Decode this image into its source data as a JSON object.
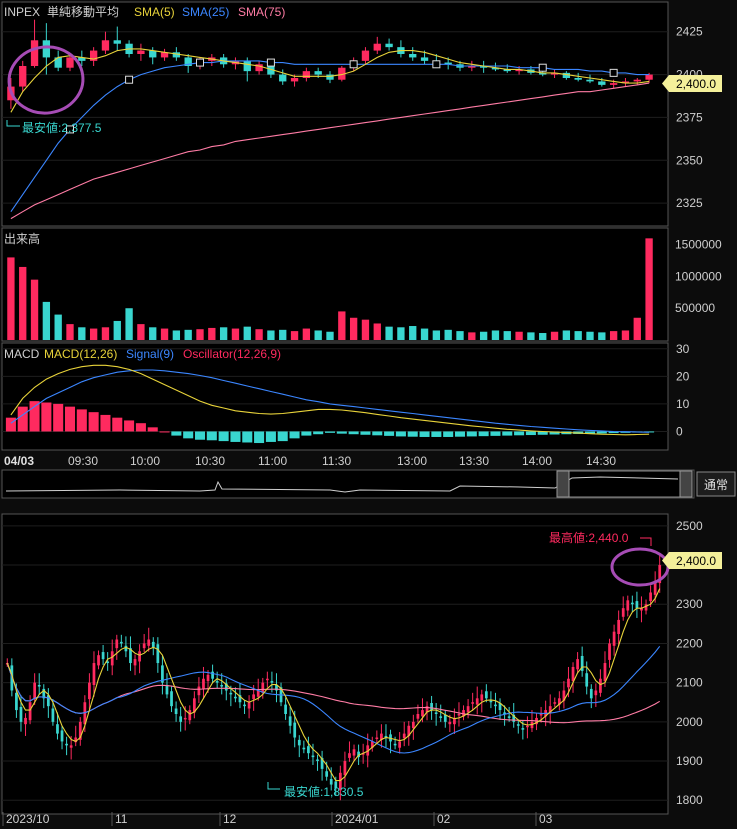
{
  "colors": {
    "up": "#ff2a5f",
    "down": "#39d6cf",
    "sma5": "#e8d33a",
    "sma25": "#3b86ff",
    "sma75": "#ff7ca5",
    "signal": "#3b86ff",
    "macd": "#e8d33a",
    "osc": "#ff2a5f",
    "price_badge": "#f4f09a",
    "annotation_circle": "#a64cb5"
  },
  "intraday": {
    "legend": {
      "symbol": "INPEX",
      "title": "単純移動平均",
      "sma5": "SMA(5)",
      "sma25": "SMA(25)",
      "sma75": "SMA(75)"
    },
    "price_badge": "2,400.0",
    "low_label": "最安値:2,377.5",
    "volume_title": "出来高",
    "macd_legend": {
      "macd": "MACD",
      "macd_params": "MACD(12,26)",
      "signal": "Signal(9)",
      "osc": "Oscillator(12,26,9)"
    },
    "date_label": "04/03",
    "time_labels": [
      "09:30",
      "10:00",
      "10:30",
      "11:00",
      "11:30",
      "13:00",
      "13:30",
      "14:00",
      "14:30"
    ],
    "mode_button": "通常"
  },
  "daily": {
    "price_badge": "2,400.0",
    "high_label": "最高値:2,440.0",
    "low_label": "最安値:1,830.5",
    "x_labels": [
      "2023/10",
      "11",
      "12",
      "2024/01",
      "02",
      "03"
    ]
  },
  "chart_data": [
    {
      "type": "candlestick",
      "name": "intraday-price",
      "yticks": [
        2325,
        2350,
        2375,
        2400,
        2425
      ],
      "ylim": [
        2314,
        2440
      ],
      "candles": [
        [
          2385,
          2398,
          2380,
          2393
        ],
        [
          2393,
          2408,
          2390,
          2405
        ],
        [
          2405,
          2432,
          2404,
          2420
        ],
        [
          2420,
          2430,
          2400,
          2410
        ],
        [
          2410,
          2414,
          2402,
          2404
        ],
        [
          2404,
          2412,
          2402,
          2410
        ],
        [
          2410,
          2414,
          2405,
          2408
        ],
        [
          2408,
          2416,
          2405,
          2414
        ],
        [
          2414,
          2425,
          2412,
          2420
        ],
        [
          2420,
          2428,
          2414,
          2418
        ],
        [
          2418,
          2420,
          2410,
          2412
        ],
        [
          2412,
          2418,
          2408,
          2414
        ],
        [
          2414,
          2416,
          2406,
          2410
        ],
        [
          2410,
          2415,
          2408,
          2413
        ],
        [
          2413,
          2416,
          2408,
          2410
        ],
        [
          2410,
          2412,
          2401,
          2405
        ],
        [
          2405,
          2410,
          2403,
          2408
        ],
        [
          2408,
          2412,
          2405,
          2410
        ],
        [
          2410,
          2412,
          2404,
          2406
        ],
        [
          2406,
          2410,
          2403,
          2408
        ],
        [
          2408,
          2410,
          2396,
          2402
        ],
        [
          2402,
          2408,
          2400,
          2406
        ],
        [
          2406,
          2408,
          2398,
          2400
        ],
        [
          2400,
          2403,
          2394,
          2396
        ],
        [
          2396,
          2400,
          2393,
          2398
        ],
        [
          2398,
          2404,
          2396,
          2402
        ],
        [
          2402,
          2404,
          2398,
          2400
        ],
        [
          2400,
          2402,
          2395,
          2397
        ],
        [
          2397,
          2405,
          2396,
          2404
        ],
        [
          2404,
          2410,
          2402,
          2408
        ],
        [
          2408,
          2416,
          2406,
          2414
        ],
        [
          2414,
          2422,
          2412,
          2418
        ],
        [
          2418,
          2421,
          2414,
          2416
        ],
        [
          2416,
          2420,
          2410,
          2412
        ],
        [
          2412,
          2416,
          2408,
          2410
        ],
        [
          2410,
          2414,
          2406,
          2408
        ],
        [
          2408,
          2412,
          2404,
          2407
        ],
        [
          2407,
          2410,
          2403,
          2406
        ],
        [
          2406,
          2408,
          2402,
          2404
        ],
        [
          2404,
          2408,
          2402,
          2405
        ],
        [
          2405,
          2408,
          2401,
          2404
        ],
        [
          2404,
          2407,
          2402,
          2403
        ],
        [
          2403,
          2406,
          2401,
          2402
        ],
        [
          2402,
          2405,
          2400,
          2403
        ],
        [
          2403,
          2405,
          2400,
          2401
        ],
        [
          2401,
          2404,
          2399,
          2400
        ],
        [
          2400,
          2403,
          2398,
          2401
        ],
        [
          2401,
          2402,
          2397,
          2398
        ],
        [
          2398,
          2401,
          2396,
          2397
        ],
        [
          2397,
          2400,
          2395,
          2396
        ],
        [
          2396,
          2398,
          2393,
          2394
        ],
        [
          2394,
          2397,
          2392,
          2395
        ],
        [
          2395,
          2398,
          2393,
          2396
        ],
        [
          2396,
          2398,
          2394,
          2397
        ],
        [
          2397,
          2401,
          2395,
          2400
        ]
      ],
      "sma5": [
        2378,
        2390,
        2398,
        2405,
        2410,
        2411,
        2410,
        2409,
        2411,
        2414,
        2415,
        2415,
        2414,
        2413,
        2412,
        2411,
        2410,
        2409,
        2408,
        2407,
        2406,
        2405,
        2403,
        2401,
        2399,
        2399,
        2399,
        2399,
        2400,
        2402,
        2406,
        2410,
        2413,
        2414,
        2414,
        2413,
        2411,
        2409,
        2407,
        2406,
        2405,
        2404,
        2403,
        2403,
        2402,
        2401,
        2401,
        2400,
        2399,
        2398,
        2397,
        2396,
        2395,
        2395,
        2396
      ],
      "sma25": [
        2320,
        2330,
        2340,
        2350,
        2360,
        2368,
        2375,
        2382,
        2388,
        2393,
        2397,
        2400,
        2402,
        2404,
        2405,
        2406,
        2407,
        2407,
        2408,
        2408,
        2408,
        2408,
        2407,
        2407,
        2406,
        2406,
        2406,
        2406,
        2406,
        2406,
        2406,
        2406,
        2406,
        2406,
        2406,
        2406,
        2406,
        2406,
        2405,
        2405,
        2405,
        2405,
        2405,
        2404,
        2404,
        2404,
        2403,
        2403,
        2403,
        2402,
        2402,
        2401,
        2401,
        2400,
        2400
      ],
      "sma75": [
        2316,
        2320,
        2324,
        2327,
        2330,
        2333,
        2336,
        2339,
        2341,
        2343,
        2345,
        2347,
        2349,
        2351,
        2353,
        2355,
        2356,
        2358,
        2359,
        2361,
        2362,
        2363,
        2364,
        2365,
        2366,
        2367,
        2368,
        2369,
        2370,
        2371,
        2372,
        2373,
        2374,
        2375,
        2376,
        2377,
        2378,
        2379,
        2380,
        2381,
        2382,
        2383,
        2384,
        2385,
        2386,
        2387,
        2388,
        2389,
        2390,
        2390,
        2391,
        2392,
        2393,
        2394,
        2395
      ]
    },
    {
      "type": "bar",
      "name": "intraday-volume",
      "yticks": [
        500000,
        1000000,
        1500000
      ],
      "ylim": [
        0,
        1700000
      ],
      "values": [
        1300000,
        1150000,
        950000,
        600000,
        400000,
        250000,
        200000,
        180000,
        200000,
        300000,
        500000,
        250000,
        200000,
        180000,
        150000,
        160000,
        170000,
        190000,
        200000,
        180000,
        210000,
        170000,
        150000,
        160000,
        140000,
        180000,
        150000,
        130000,
        450000,
        350000,
        320000,
        260000,
        210000,
        200000,
        220000,
        180000,
        150000,
        160000,
        140000,
        120000,
        130000,
        150000,
        140000,
        130000,
        120000,
        110000,
        130000,
        150000,
        140000,
        130000,
        120000,
        140000,
        150000,
        350000,
        1600000
      ]
    },
    {
      "type": "line",
      "name": "intraday-macd",
      "yticks": [
        0,
        10,
        20,
        30
      ],
      "ylim": [
        -6,
        31
      ],
      "macd": [
        6,
        12,
        16,
        19,
        21,
        22.5,
        23.5,
        24,
        24,
        23.5,
        22.5,
        21,
        19,
        17,
        15,
        13,
        11,
        9.5,
        8.5,
        7.5,
        7,
        6.5,
        6.3,
        6.5,
        7,
        7.5,
        8,
        8,
        7.8,
        7.3,
        6.8,
        6.2,
        5.6,
        5,
        4.5,
        4,
        3.5,
        3,
        2.5,
        2,
        1.6,
        1.2,
        0.8,
        0.5,
        0.2,
        0,
        -0.2,
        -0.4,
        -0.6,
        -0.8,
        -1,
        -1.1,
        -1.2,
        -1.1,
        -1
      ],
      "signal": [
        3,
        6,
        9,
        12,
        14,
        16,
        18,
        19.5,
        20.5,
        21.5,
        22,
        22.3,
        22.3,
        22,
        21.5,
        21,
        20.3,
        19.5,
        18.5,
        17.5,
        16.5,
        15.5,
        14.5,
        13.5,
        12.5,
        11.5,
        10.8,
        10,
        9.5,
        9,
        8.5,
        8,
        7.5,
        7,
        6.5,
        6,
        5.5,
        5,
        4.5,
        4,
        3.5,
        3,
        2.6,
        2.2,
        1.8,
        1.5,
        1.2,
        0.9,
        0.6,
        0.4,
        0.2,
        0,
        -0.1,
        -0.2,
        -0.3
      ],
      "oscillator": [
        5,
        9,
        11,
        10.5,
        10,
        9,
        8,
        7,
        6,
        5,
        4,
        3,
        1.5,
        0,
        -1.5,
        -2.5,
        -3,
        -3.2,
        -3.5,
        -3.8,
        -4,
        -4.2,
        -3.8,
        -3.5,
        -2.5,
        -1.5,
        -1,
        -0.5,
        -0.8,
        -1,
        -1.2,
        -1.4,
        -1.6,
        -1.8,
        -1.9,
        -2,
        -2,
        -2,
        -1.9,
        -1.8,
        -1.7,
        -1.6,
        -1.5,
        -1.4,
        -1.3,
        -1.2,
        -1.1,
        -1,
        -0.9,
        -0.8,
        -0.7,
        -0.6,
        -0.5,
        -0.4,
        -0.3
      ]
    },
    {
      "type": "candlestick",
      "name": "daily-price",
      "yticks": [
        1800,
        1900,
        2000,
        2100,
        2200,
        2300,
        2400,
        2500
      ],
      "ylim": [
        1770,
        2520
      ],
      "series": [
        {
          "name": "price",
          "close": [
            2150,
            2080,
            2030,
            2000,
            2010,
            2050,
            2100,
            2090,
            2060,
            2040,
            2000,
            1970,
            1950,
            1940,
            1940,
            1960,
            2000,
            2050,
            2100,
            2150,
            2170,
            2160,
            2150,
            2180,
            2210,
            2200,
            2180,
            2150,
            2160,
            2180,
            2200,
            2210,
            2190,
            2150,
            2100,
            2070,
            2040,
            2020,
            2000,
            2010,
            2030,
            2060,
            2090,
            2110,
            2120,
            2110,
            2100,
            2090,
            2080,
            2070,
            2060,
            2050,
            2040,
            2050,
            2070,
            2080,
            2100,
            2110,
            2100,
            2080,
            2050,
            2020,
            1990,
            1960,
            1940,
            1930,
            1920,
            1910,
            1900,
            1880,
            1860,
            1840,
            1831,
            1870,
            1900,
            1920,
            1930,
            1910,
            1920,
            1940,
            1950,
            1960,
            1970,
            1960,
            1950,
            1940,
            1950,
            1970,
            1990,
            2000,
            2020,
            2030,
            2040,
            2030,
            2020,
            2010,
            2000,
            2000,
            2010,
            2020,
            2030,
            2040,
            2050,
            2060,
            2070,
            2060,
            2050,
            2040,
            2030,
            2020,
            2010,
            2000,
            1990,
            1980,
            1990,
            2000,
            2010,
            2020,
            2030,
            2040,
            2050,
            2060,
            2080,
            2110,
            2140,
            2160,
            2130,
            2090,
            2060,
            2080,
            2110,
            2150,
            2200,
            2230,
            2260,
            2290,
            2310,
            2300,
            2290,
            2290,
            2300,
            2330,
            2360,
            2400
          ]
        }
      ],
      "sma5": [
        2150,
        2120,
        2080,
        2050,
        2030,
        2030,
        2050,
        2070,
        2080,
        2070,
        2050,
        2020,
        1990,
        1970,
        1955,
        1950,
        1960,
        1990,
        2030,
        2070,
        2110,
        2140,
        2160,
        2165,
        2175,
        2185,
        2190,
        2185,
        2175,
        2170,
        2175,
        2185,
        2190,
        2185,
        2170,
        2140,
        2110,
        2080,
        2050,
        2030,
        2020,
        2025,
        2040,
        2060,
        2080,
        2100,
        2110,
        2105,
        2095,
        2085,
        2075,
        2065,
        2055,
        2050,
        2055,
        2060,
        2070,
        2085,
        2095,
        2095,
        2085,
        2065,
        2040,
        2015,
        1990,
        1965,
        1945,
        1930,
        1920,
        1905,
        1890,
        1870,
        1850,
        1850,
        1860,
        1880,
        1900,
        1915,
        1920,
        1925,
        1935,
        1945,
        1955,
        1960,
        1958,
        1955,
        1952,
        1955,
        1965,
        1980,
        1995,
        2010,
        2025,
        2030,
        2030,
        2025,
        2018,
        2012,
        2008,
        2010,
        2015,
        2022,
        2030,
        2040,
        2050,
        2055,
        2056,
        2054,
        2048,
        2038,
        2025,
        2015,
        2005,
        1995,
        1992,
        1993,
        1998,
        2005,
        2015,
        2025,
        2035,
        2045,
        2055,
        2075,
        2100,
        2125,
        2140,
        2140,
        2125,
        2105,
        2095,
        2100,
        2125,
        2160,
        2195,
        2230,
        2260,
        2280,
        2290,
        2290,
        2295,
        2300,
        2315,
        2340
      ]
    }
  ]
}
